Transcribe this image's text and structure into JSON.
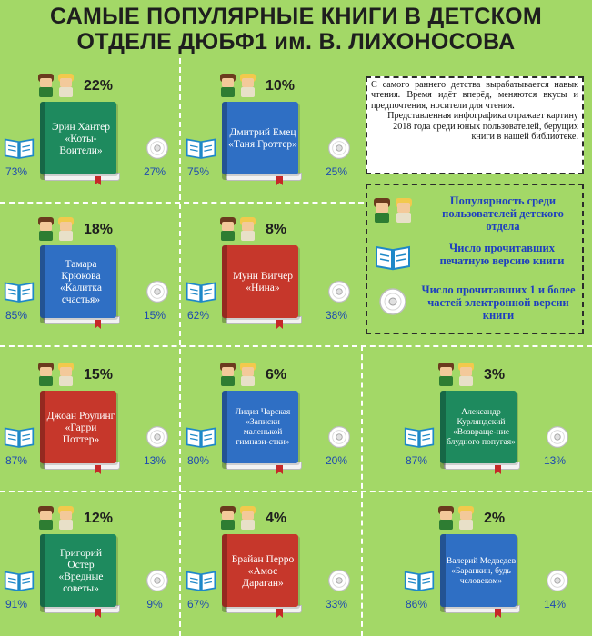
{
  "title_line1": "САМЫЕ ПОПУЛЯРНЫЕ КНИГИ В ДЕТСКОМ",
  "title_line2": "ОТДЕЛЕ ДЮБФ1 им. В. ЛИХОНОСОВА",
  "description": {
    "p1": "С самого раннего детства вырабатывается навык чтения. Время идёт вперёд, меняются вкусы и предпочтения, носители для чтения.",
    "p2": "Представленная инфографика отражает картину 2018 года среди юных пользователей, берущих книги в нашей библиотеке."
  },
  "legend": {
    "popularity": "Популярность среди пользователей детского отдела",
    "print": "Число прочитавших печатную версию книги",
    "electronic": "Число прочитавших 1 и более частей электронной версии книги"
  },
  "colors": {
    "background": "#a3d867",
    "accent_blue": "#1e4ab0",
    "legend_text": "#1e3fbf"
  },
  "books": [
    {
      "title": "Эрин Хантер «Коты-Воители»",
      "popularity": "22%",
      "print": "73%",
      "electronic": "27%",
      "color": "#1e8a5e"
    },
    {
      "title": "Дмитрий Емец «Таня Гроттер»",
      "popularity": "10%",
      "print": "75%",
      "electronic": "25%",
      "color": "#2f6fc4"
    },
    {
      "title": "Тамара Крюкова «Калитка счастья»",
      "popularity": "18%",
      "print": "85%",
      "electronic": "15%",
      "color": "#2f6fc4"
    },
    {
      "title": "Мунн Вигчер «Нина»",
      "popularity": "8%",
      "print": "62%",
      "electronic": "38%",
      "color": "#c6372b"
    },
    {
      "title": "Джоан Роулинг «Гарри Поттер»",
      "popularity": "15%",
      "print": "87%",
      "electronic": "13%",
      "color": "#c6372b"
    },
    {
      "title": "Лидия Чарская «Записки маленькой гимнази-стки»",
      "popularity": "6%",
      "print": "80%",
      "electronic": "20%",
      "color": "#2f6fc4"
    },
    {
      "title": "Александр Курляндский «Возвраще-ние блудного попугая»",
      "popularity": "3%",
      "print": "87%",
      "electronic": "13%",
      "color": "#1e8a5e"
    },
    {
      "title": "Григорий Остер «Вредные советы»",
      "popularity": "12%",
      "print": "91%",
      "electronic": "9%",
      "color": "#1e8a5e"
    },
    {
      "title": "Брайан Перро «Амос Дараган»",
      "popularity": "4%",
      "print": "67%",
      "electronic": "33%",
      "color": "#c6372b"
    },
    {
      "title": "Валерий Медведев «Баранкин, будь человеком»",
      "popularity": "2%",
      "print": "86%",
      "electronic": "14%",
      "color": "#2f6fc4"
    }
  ]
}
